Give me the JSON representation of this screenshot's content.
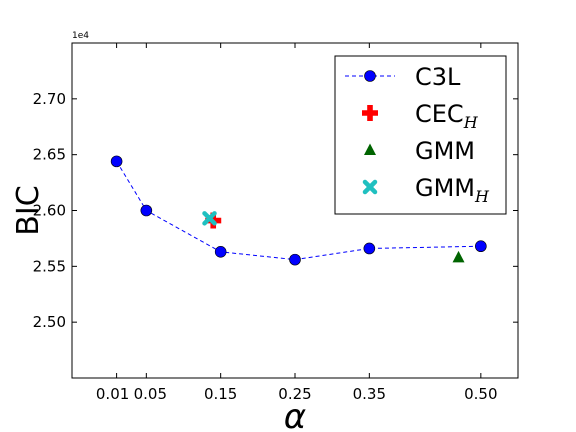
{
  "chart_data": {
    "type": "line",
    "ylabel": "BIC",
    "xlabel": "α",
    "y_offset_label": "1e4",
    "xlim": [
      -0.05,
      0.55
    ],
    "ylim": [
      2.45,
      2.75
    ],
    "x_ticks": [
      0.01,
      0.05,
      0.15,
      0.25,
      0.35,
      0.5
    ],
    "x_tick_labels": [
      "0.01",
      "0.05",
      "0.15",
      "0.25",
      "0.35",
      "0.50"
    ],
    "y_ticks": [
      2.5,
      2.55,
      2.6,
      2.65,
      2.7
    ],
    "y_tick_labels": [
      "2.50",
      "2.55",
      "2.60",
      "2.65",
      "2.70"
    ],
    "grid": false,
    "legend_position": "top-right",
    "series": [
      {
        "name": "C3L",
        "marker": "circle",
        "line": "dashed",
        "color": "#0000ff",
        "x": [
          0.01,
          0.05,
          0.15,
          0.25,
          0.35,
          0.5
        ],
        "y": [
          2.644,
          2.6,
          2.563,
          2.556,
          2.566,
          2.568
        ]
      },
      {
        "name": "CEC",
        "name_sub": "H",
        "marker": "plus",
        "color": "#ff0000",
        "x": [
          0.14
        ],
        "y": [
          2.591
        ]
      },
      {
        "name": "GMM",
        "marker": "triangle",
        "color": "#006400",
        "x": [
          0.47
        ],
        "y": [
          2.558
        ]
      },
      {
        "name": "GMM",
        "name_sub": "H",
        "marker": "x",
        "color": "#20c0c0",
        "x": [
          0.135
        ],
        "y": [
          2.593
        ]
      }
    ]
  }
}
